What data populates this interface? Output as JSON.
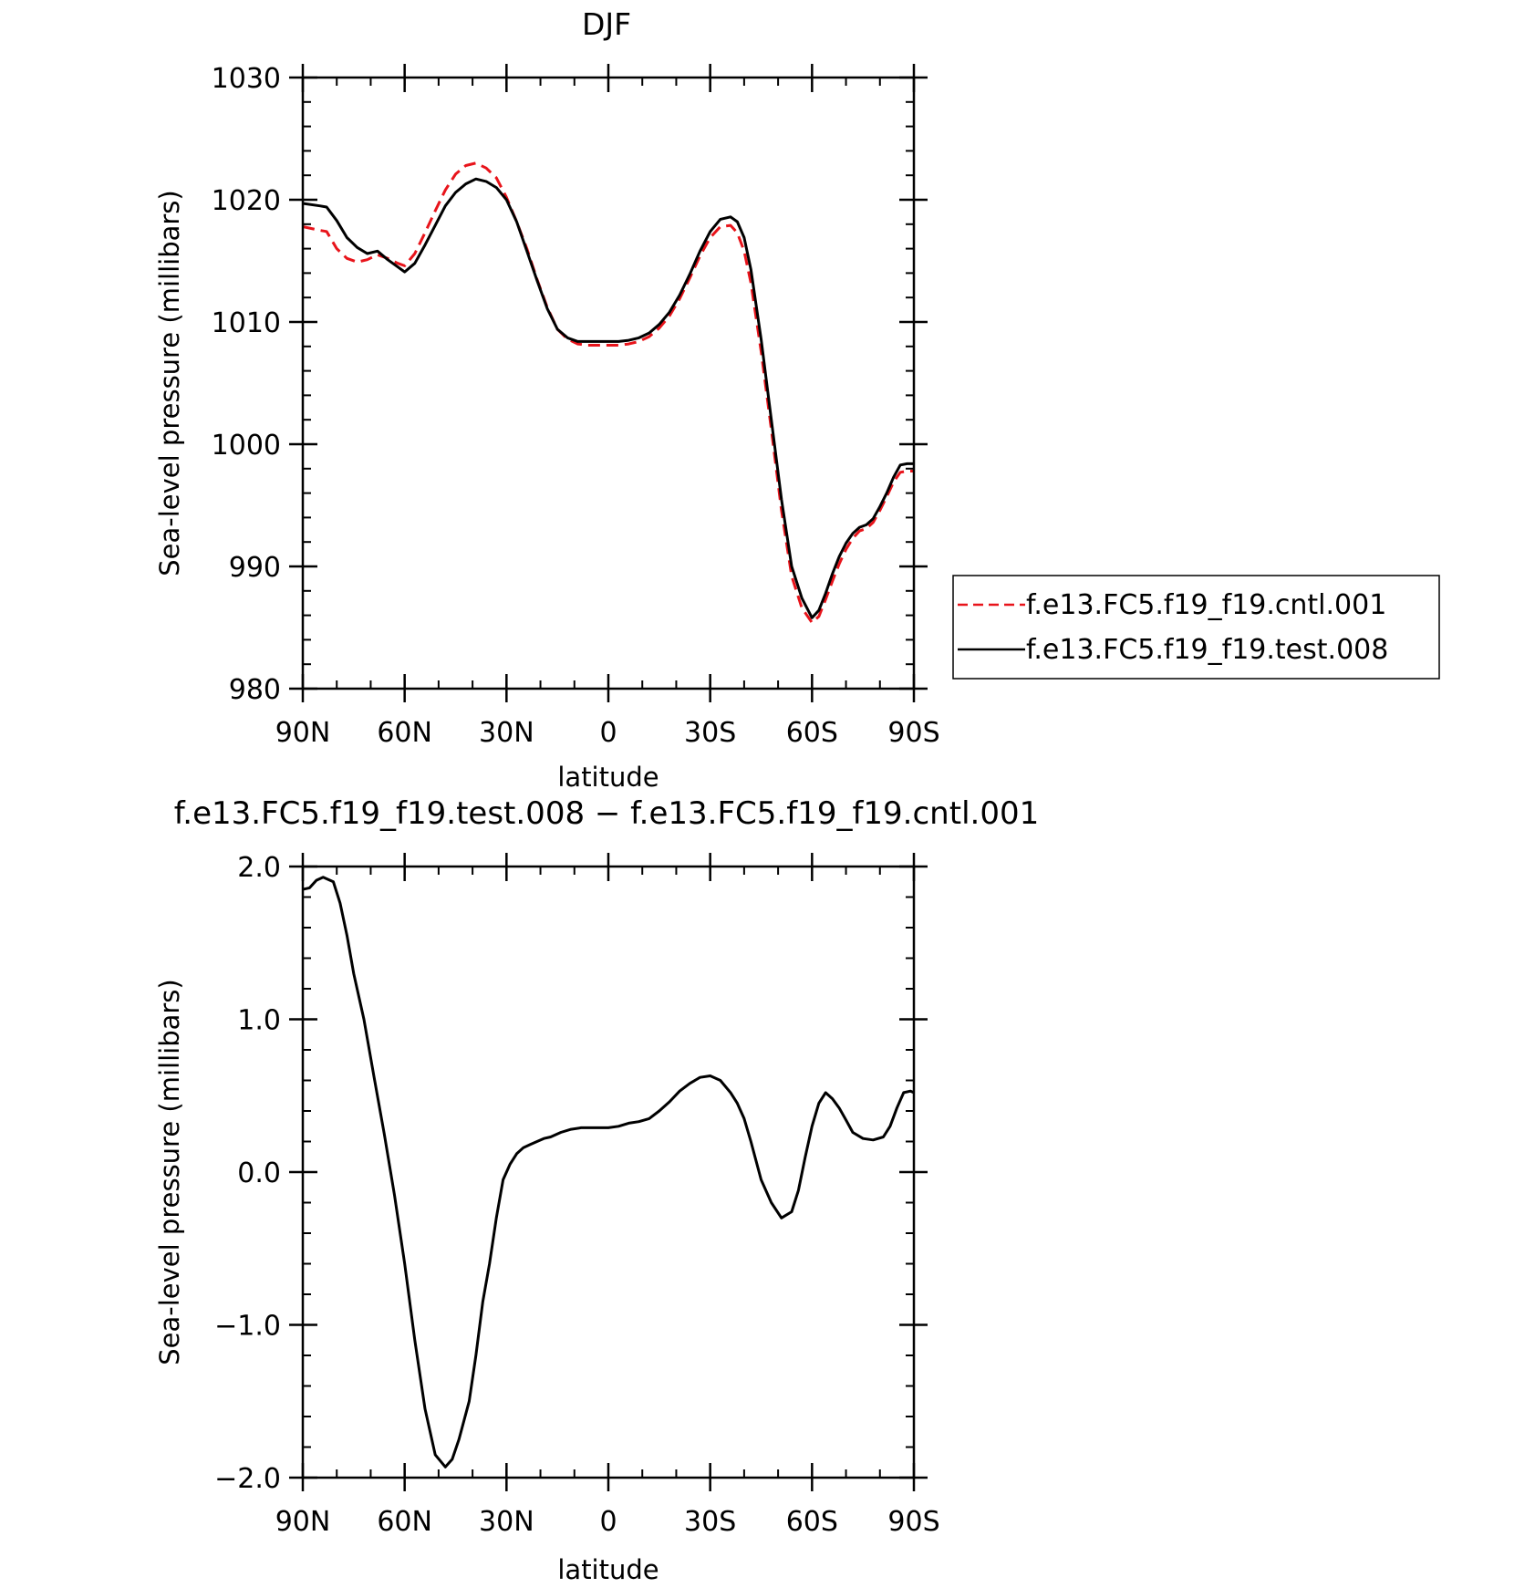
{
  "chart_data": [
    {
      "type": "line",
      "title": "DJF",
      "xlabel": "latitude",
      "ylabel": "Sea-level pressure (millibars)",
      "xlim": [
        90,
        -90
      ],
      "ylim": [
        980,
        1030
      ],
      "x_ticks": [
        {
          "value": 90,
          "label": "90N"
        },
        {
          "value": 60,
          "label": "60N"
        },
        {
          "value": 30,
          "label": "30N"
        },
        {
          "value": 0,
          "label": "0"
        },
        {
          "value": -30,
          "label": "30S"
        },
        {
          "value": -60,
          "label": "60S"
        },
        {
          "value": -90,
          "label": "90S"
        }
      ],
      "y_ticks": [
        {
          "value": 980,
          "label": "980"
        },
        {
          "value": 990,
          "label": "990"
        },
        {
          "value": 1000,
          "label": "1000"
        },
        {
          "value": 1010,
          "label": "1010"
        },
        {
          "value": 1020,
          "label": "1020"
        },
        {
          "value": 1030,
          "label": "1030"
        }
      ],
      "legend": "right",
      "series": [
        {
          "name": "f.e13.FC5.f19_f19.cntl.001",
          "color": "#e8141b",
          "dash": "dashed",
          "x": [
            90,
            85,
            83,
            80,
            77,
            74,
            71,
            68,
            65,
            62,
            60,
            57,
            54,
            51,
            48,
            45,
            42,
            39,
            36,
            33,
            30,
            27,
            24,
            21,
            18,
            15,
            12,
            9,
            6,
            3,
            0,
            -3,
            -6,
            -9,
            -12,
            -15,
            -18,
            -21,
            -24,
            -27,
            -30,
            -33,
            -36,
            -38,
            -40,
            -42,
            -45,
            -48,
            -51,
            -54,
            -57,
            -60,
            -62,
            -64,
            -66,
            -68,
            -70,
            -72,
            -74,
            -76,
            -78,
            -80,
            -82,
            -84,
            -86,
            -88,
            -90
          ],
          "values": [
            1017.8,
            1017.5,
            1017.4,
            1016,
            1015.2,
            1014.9,
            1015.1,
            1015.5,
            1015.2,
            1014.8,
            1014.6,
            1015.6,
            1017.3,
            1019.1,
            1020.8,
            1022.1,
            1022.8,
            1023,
            1022.6,
            1021.8,
            1020.2,
            1018.2,
            1016,
            1013.5,
            1011.2,
            1009.4,
            1008.6,
            1008.2,
            1008.1,
            1008.1,
            1008.1,
            1008.1,
            1008.2,
            1008.4,
            1008.8,
            1009.5,
            1010.5,
            1011.9,
            1013.6,
            1015.4,
            1016.9,
            1017.8,
            1017.9,
            1017.3,
            1015.8,
            1013.2,
            1007.6,
            1001.2,
            994.6,
            989.2,
            986.6,
            985.4,
            985.9,
            987.3,
            988.8,
            990.2,
            991.4,
            992.3,
            992.9,
            993.1,
            993.6,
            994.6,
            995.7,
            996.9,
            997.7,
            997.8,
            997.8
          ]
        },
        {
          "name": "f.e13.FC5.f19_f19.test.008",
          "color": "#000000",
          "dash": "solid",
          "x": [
            90,
            85,
            83,
            80,
            77,
            74,
            71,
            68,
            65,
            62,
            60,
            57,
            54,
            51,
            48,
            45,
            42,
            39,
            36,
            33,
            30,
            27,
            24,
            21,
            18,
            15,
            12,
            9,
            6,
            3,
            0,
            -3,
            -6,
            -9,
            -12,
            -15,
            -18,
            -21,
            -24,
            -27,
            -30,
            -33,
            -36,
            -38,
            -40,
            -42,
            -45,
            -48,
            -51,
            -54,
            -57,
            -60,
            -62,
            -64,
            -66,
            -68,
            -70,
            -72,
            -74,
            -76,
            -78,
            -80,
            -82,
            -84,
            -86,
            -88,
            -90
          ],
          "values": [
            1019.7,
            1019.5,
            1019.4,
            1018.3,
            1016.9,
            1016.1,
            1015.6,
            1015.8,
            1015.1,
            1014.5,
            1014.1,
            1014.8,
            1016.3,
            1017.9,
            1019.5,
            1020.6,
            1021.3,
            1021.7,
            1021.5,
            1021,
            1020,
            1018.2,
            1015.8,
            1013.4,
            1011.1,
            1009.4,
            1008.7,
            1008.4,
            1008.4,
            1008.4,
            1008.4,
            1008.4,
            1008.5,
            1008.7,
            1009.1,
            1009.8,
            1010.8,
            1012.2,
            1013.9,
            1015.8,
            1017.4,
            1018.4,
            1018.6,
            1018.2,
            1016.9,
            1014.3,
            1008.6,
            1002,
            995.5,
            990,
            987.4,
            985.8,
            986.4,
            987.8,
            989.4,
            990.8,
            991.9,
            992.7,
            993.2,
            993.4,
            993.9,
            994.9,
            996,
            997.3,
            998.3,
            998.4,
            998.4
          ]
        }
      ]
    },
    {
      "type": "line",
      "title": "f.e13.FC5.f19_f19.test.008 − f.e13.FC5.f19_f19.cntl.001",
      "xlabel": "latitude",
      "ylabel": "Sea-level pressure (millibars)",
      "xlim": [
        90,
        -90
      ],
      "ylim": [
        -2.0,
        2.0
      ],
      "x_ticks": [
        {
          "value": 90,
          "label": "90N"
        },
        {
          "value": 60,
          "label": "60N"
        },
        {
          "value": 30,
          "label": "30N"
        },
        {
          "value": 0,
          "label": "0"
        },
        {
          "value": -30,
          "label": "30S"
        },
        {
          "value": -60,
          "label": "60S"
        },
        {
          "value": -90,
          "label": "90S"
        }
      ],
      "y_ticks": [
        {
          "value": -2.0,
          "label": "−2.0"
        },
        {
          "value": -1.0,
          "label": "−1.0"
        },
        {
          "value": 0.0,
          "label": "0.0"
        },
        {
          "value": 1.0,
          "label": "1.0"
        },
        {
          "value": 2.0,
          "label": "2.0"
        }
      ],
      "series": [
        {
          "color": "#000000",
          "dash": "solid",
          "x": [
            90,
            88,
            86,
            84,
            81,
            79,
            77,
            75,
            72,
            69,
            66,
            63,
            60,
            57,
            54,
            51,
            48,
            46,
            44,
            41,
            39,
            37,
            35,
            33,
            31,
            29,
            27,
            25,
            23,
            21,
            19,
            17,
            14,
            11,
            8,
            5,
            2,
            0,
            -3,
            -6,
            -9,
            -12,
            -15,
            -18,
            -21,
            -24,
            -27,
            -30,
            -33,
            -36,
            -38,
            -40,
            -42,
            -45,
            -48,
            -51,
            -54,
            -56,
            -58,
            -60,
            -62,
            -64,
            -66,
            -68,
            -70,
            -72,
            -75,
            -78,
            -81,
            -83,
            -85,
            -87,
            -89,
            -90
          ],
          "values": [
            1.85,
            1.86,
            1.91,
            1.93,
            1.9,
            1.76,
            1.55,
            1.3,
            1.0,
            0.62,
            0.25,
            -0.15,
            -0.6,
            -1.1,
            -1.55,
            -1.85,
            -1.93,
            -1.88,
            -1.75,
            -1.5,
            -1.2,
            -0.85,
            -0.6,
            -0.3,
            -0.05,
            0.05,
            0.12,
            0.16,
            0.18,
            0.2,
            0.22,
            0.23,
            0.26,
            0.28,
            0.29,
            0.29,
            0.29,
            0.29,
            0.3,
            0.32,
            0.33,
            0.35,
            0.4,
            0.46,
            0.53,
            0.58,
            0.62,
            0.63,
            0.6,
            0.52,
            0.45,
            0.35,
            0.2,
            -0.05,
            -0.2,
            -0.3,
            -0.26,
            -0.12,
            0.1,
            0.3,
            0.45,
            0.52,
            0.48,
            0.42,
            0.34,
            0.26,
            0.22,
            0.21,
            0.23,
            0.3,
            0.42,
            0.52,
            0.53,
            0.52
          ]
        }
      ]
    }
  ]
}
